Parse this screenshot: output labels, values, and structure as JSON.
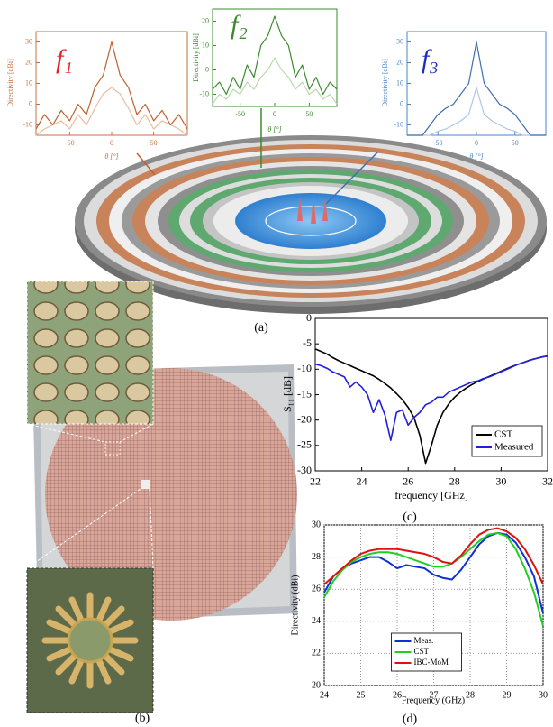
{
  "panel_labels": [
    "(a)",
    "(b)",
    "(c)",
    "(d)"
  ],
  "chart_data": [
    {
      "type": "line",
      "title": "f₁",
      "title_color": "#e3262a",
      "color": "#c8703d",
      "xlabel": "θ [°]",
      "ylabel": "Directivity [dBi]",
      "x": [
        -90,
        -80,
        -70,
        -60,
        -50,
        -40,
        -30,
        -20,
        -10,
        0,
        10,
        20,
        30,
        40,
        50,
        60,
        70,
        80,
        90
      ],
      "xlim": [
        -90,
        90
      ],
      "xticks": [
        -50,
        0,
        50
      ],
      "ylim": [
        -15,
        35
      ],
      "yticks": [
        -10,
        0,
        10,
        20,
        30
      ],
      "series": [
        {
          "color": "#eabca0",
          "values": [
            -15,
            -12,
            -10,
            -8,
            -12,
            -5,
            -10,
            -2,
            5,
            8,
            5,
            -2,
            -10,
            -5,
            -12,
            -8,
            -10,
            -12,
            -15
          ]
        },
        {
          "color": "#c0612b",
          "values": [
            -12,
            -5,
            -10,
            -3,
            -8,
            0,
            -5,
            8,
            14,
            30,
            14,
            8,
            -5,
            0,
            -8,
            -3,
            -10,
            -5,
            -12
          ]
        }
      ]
    },
    {
      "type": "line",
      "title": "f₂",
      "title_color": "#3d8b2f",
      "color": "#3d8b2f",
      "xlabel": "θ [°]",
      "ylabel": "Directivity [dBi]",
      "x": [
        -90,
        -80,
        -70,
        -60,
        -50,
        -40,
        -30,
        -20,
        -10,
        0,
        10,
        20,
        30,
        40,
        50,
        60,
        70,
        80,
        90
      ],
      "xlim": [
        -90,
        90
      ],
      "xticks": [
        -50,
        0,
        50
      ],
      "ylim": [
        -15,
        25
      ],
      "yticks": [
        -10,
        0,
        10,
        20
      ],
      "series": [
        {
          "color": "#b9d8ac",
          "values": [
            -14,
            -10,
            -12,
            -8,
            -10,
            -5,
            -8,
            -3,
            0,
            5,
            0,
            -3,
            -8,
            -5,
            -10,
            -8,
            -12,
            -10,
            -14
          ]
        },
        {
          "color": "#3d8b2f",
          "values": [
            -8,
            -5,
            -10,
            -3,
            -8,
            2,
            -3,
            10,
            14,
            22,
            14,
            10,
            -3,
            2,
            -8,
            -3,
            -10,
            -5,
            -8
          ]
        }
      ]
    },
    {
      "type": "line",
      "title": "f₃",
      "title_color": "#1f2dbf",
      "color": "#4a86c8",
      "xlabel": "θ [°]",
      "ylabel": "Directivity [dBi]",
      "x": [
        -90,
        -80,
        -70,
        -60,
        -50,
        -40,
        -30,
        -20,
        -10,
        0,
        10,
        20,
        30,
        40,
        50,
        60,
        70,
        80,
        90
      ],
      "xlim": [
        -90,
        90
      ],
      "xticks": [
        -50,
        0,
        50
      ],
      "ylim": [
        -15,
        35
      ],
      "yticks": [
        -10,
        0,
        10,
        20,
        30
      ],
      "series": [
        {
          "color": "#adc6e6",
          "values": [
            -15,
            -15,
            -15,
            -15,
            -13,
            -12,
            -10,
            -8,
            -5,
            8,
            -5,
            -8,
            -10,
            -12,
            -13,
            -15,
            -15,
            -15,
            -15
          ]
        },
        {
          "color": "#3f6fb0",
          "values": [
            -15,
            -15,
            -15,
            -10,
            -5,
            -2,
            0,
            5,
            10,
            30,
            10,
            5,
            0,
            -2,
            -5,
            -10,
            -15,
            -15,
            -15
          ]
        }
      ]
    },
    {
      "type": "line",
      "xlabel": "frequency [GHz]",
      "ylabel": "S₁₁ [dB]",
      "legend": "lower right",
      "x": [
        22,
        22.25,
        22.5,
        22.75,
        23,
        23.25,
        23.5,
        23.75,
        24,
        24.25,
        24.5,
        24.75,
        25,
        25.25,
        25.5,
        25.75,
        26,
        26.25,
        26.5,
        26.75,
        27,
        27.25,
        27.5,
        27.75,
        28,
        28.25,
        28.5,
        28.75,
        29,
        29.25,
        29.5,
        29.75,
        30,
        30.25,
        30.5,
        30.75,
        31,
        31.25,
        31.5,
        31.75,
        32
      ],
      "xlim": [
        22,
        32
      ],
      "xticks": [
        22,
        24,
        26,
        28,
        30,
        32
      ],
      "ylim": [
        -30,
        0
      ],
      "yticks": [
        0,
        -5,
        -10,
        -15,
        -20,
        -25,
        -30
      ],
      "series": [
        {
          "name": "CST",
          "color": "#000000",
          "values": [
            -6,
            -6.5,
            -7,
            -7.7,
            -8.3,
            -8.8,
            -9.3,
            -9.8,
            -10.3,
            -10.8,
            -11.3,
            -12,
            -12.8,
            -13.7,
            -14.8,
            -16,
            -17.5,
            -19.5,
            -23,
            -28.5,
            -25,
            -21,
            -18.5,
            -16.8,
            -15.5,
            -14.5,
            -13.7,
            -13,
            -12.4,
            -11.9,
            -11.4,
            -10.9,
            -10.4,
            -9.9,
            -9.4,
            -9,
            -8.6,
            -8.2,
            -7.9,
            -7.6,
            -7.4
          ]
        },
        {
          "name": "Measured",
          "color": "#1f1fe0",
          "values": [
            -9,
            -9.3,
            -9.8,
            -10.5,
            -11,
            -11.5,
            -13.5,
            -12.5,
            -13.5,
            -15,
            -18.5,
            -16,
            -19,
            -24,
            -18.5,
            -18,
            -21,
            -19.5,
            -18.5,
            -17,
            -16.5,
            -15.5,
            -15.5,
            -14.5,
            -14,
            -13.5,
            -13,
            -12.5,
            -12.3,
            -11.8,
            -11.5,
            -11,
            -10.5,
            -10,
            -9.5,
            -9,
            -8.6,
            -8.2,
            -7.9,
            -7.6,
            -7.4
          ]
        }
      ]
    },
    {
      "type": "line",
      "xlabel": "Frequency (GHz)",
      "ylabel": "Directivity (dBi)",
      "legend": "lower center",
      "grid": true,
      "x": [
        24,
        24.25,
        24.5,
        24.75,
        25,
        25.25,
        25.5,
        25.75,
        26,
        26.25,
        26.5,
        26.75,
        27,
        27.25,
        27.5,
        27.75,
        28,
        28.25,
        28.5,
        28.75,
        29,
        29.25,
        29.5,
        29.75,
        30
      ],
      "xlim": [
        24,
        30
      ],
      "xticks": [
        24,
        25,
        26,
        27,
        28,
        29,
        30
      ],
      "ylim": [
        20,
        30
      ],
      "yticks": [
        20,
        22,
        24,
        26,
        28,
        30
      ],
      "series": [
        {
          "name": "Meas.",
          "color": "#1030d0",
          "values": [
            25.8,
            26.8,
            27.3,
            27.6,
            27.8,
            28,
            28,
            27.7,
            27.3,
            27.5,
            27.4,
            27.3,
            26.9,
            26.7,
            26.6,
            27.2,
            28,
            28.8,
            29.3,
            29.5,
            29.4,
            28.9,
            28,
            26.8,
            24.5
          ]
        },
        {
          "name": "CST",
          "color": "#20d020",
          "values": [
            25.5,
            26.5,
            27.2,
            27.7,
            28,
            28.2,
            28.3,
            28.3,
            28.2,
            28,
            27.8,
            27.6,
            27.4,
            27.4,
            27.6,
            28,
            28.5,
            29,
            29.4,
            29.5,
            29.3,
            28.5,
            27.3,
            25.8,
            23.7
          ]
        },
        {
          "name": "IBC-MoM",
          "color": "#e01010",
          "values": [
            26.3,
            26.8,
            27.3,
            27.8,
            28.2,
            28.4,
            28.5,
            28.5,
            28.5,
            28.4,
            28.3,
            28.2,
            28,
            27.7,
            27.6,
            28.1,
            28.8,
            29.4,
            29.7,
            29.8,
            29.6,
            29.2,
            28.5,
            27.5,
            26.3
          ]
        }
      ]
    }
  ]
}
